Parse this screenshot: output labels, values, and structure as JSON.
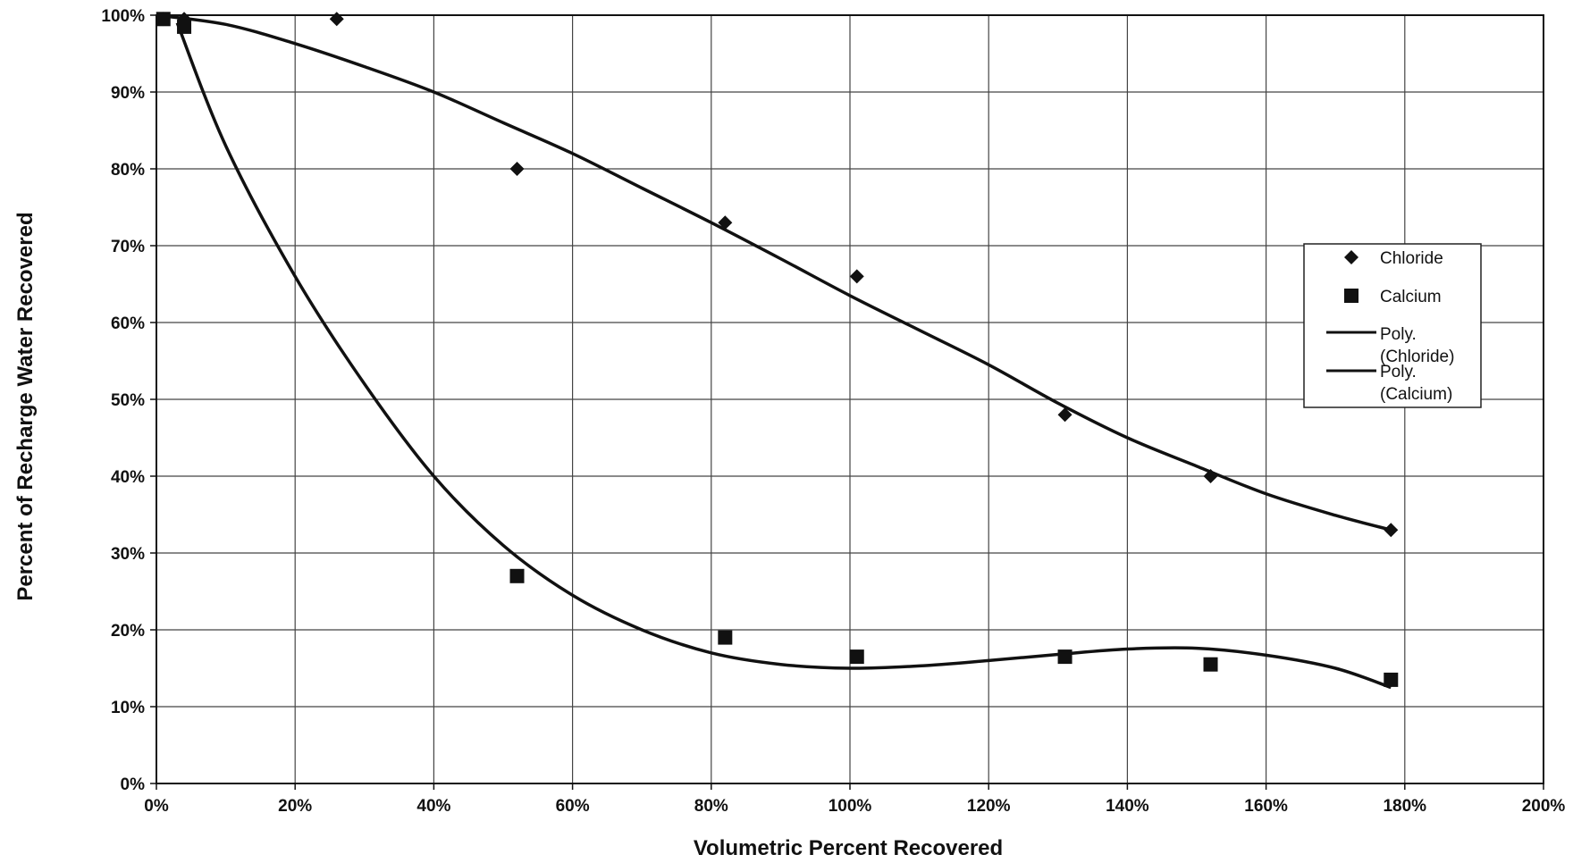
{
  "chart_data": {
    "type": "scatter",
    "title": "",
    "xlabel": "Volumetric Percent Recovered",
    "ylabel": "Percent of Recharge Water Recovered",
    "xlim": [
      0,
      200
    ],
    "ylim": [
      0,
      100
    ],
    "x_ticks": [
      "0%",
      "20%",
      "40%",
      "60%",
      "80%",
      "100%",
      "120%",
      "140%",
      "160%",
      "180%",
      "200%"
    ],
    "y_ticks": [
      "0%",
      "10%",
      "20%",
      "30%",
      "40%",
      "50%",
      "60%",
      "70%",
      "80%",
      "90%",
      "100%"
    ],
    "grid": true,
    "legend_position": "right",
    "series": [
      {
        "name": "Chloride",
        "marker": "diamond",
        "x": [
          1,
          4,
          26,
          52,
          82,
          101,
          131,
          152,
          178
        ],
        "y": [
          99.5,
          99.5,
          99.5,
          80,
          73,
          66,
          48,
          40,
          33
        ]
      },
      {
        "name": "Calcium",
        "marker": "square",
        "x": [
          1,
          4,
          52,
          82,
          101,
          131,
          152,
          178
        ],
        "y": [
          99.5,
          98.5,
          27,
          19,
          16.5,
          16.5,
          15.5,
          13.5
        ]
      },
      {
        "name": "Poly. (Chloride)",
        "type": "line",
        "x": [
          0,
          10,
          20,
          30,
          40,
          50,
          60,
          70,
          80,
          90,
          100,
          110,
          120,
          130,
          140,
          150,
          160,
          170,
          178
        ],
        "y": [
          100,
          98.8,
          96.3,
          93.3,
          90,
          86,
          82,
          77.5,
          73,
          68.3,
          63.5,
          59,
          54.5,
          49.5,
          45,
          41.3,
          37.7,
          34.9,
          33
        ]
      },
      {
        "name": "Poly. (Calcium)",
        "type": "line",
        "x": [
          3,
          10,
          20,
          30,
          40,
          50,
          60,
          70,
          80,
          90,
          100,
          110,
          120,
          130,
          140,
          150,
          160,
          170,
          178
        ],
        "y": [
          99,
          83,
          66,
          52,
          40,
          31,
          24.5,
          20,
          17,
          15.5,
          15,
          15.3,
          16,
          16.8,
          17.5,
          17.6,
          16.7,
          15,
          12.5
        ]
      }
    ]
  }
}
